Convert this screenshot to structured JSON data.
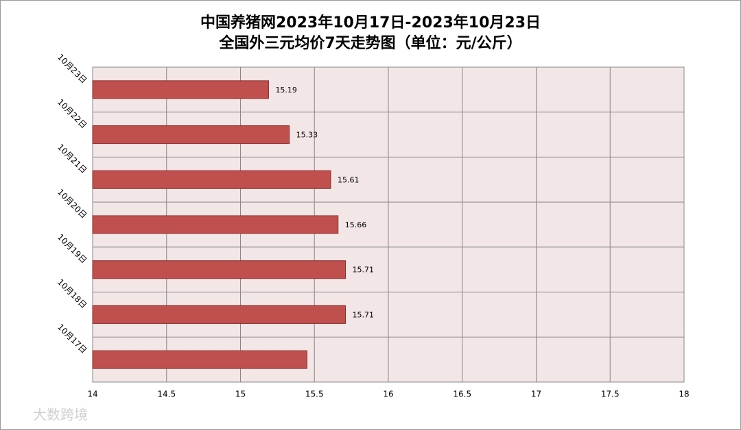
{
  "chart_data": {
    "type": "barh",
    "title": "中国养猪网2023年10月17日-2023年10月23日",
    "subtitle": "全国外三元均价7天走势图（单位：元/公斤）",
    "categories": [
      "10月23日",
      "10月22日",
      "10月21日",
      "10月20日",
      "10月19日",
      "10月18日",
      "10月17日"
    ],
    "values": [
      15.19,
      15.33,
      15.61,
      15.66,
      15.71,
      15.71,
      15.45
    ],
    "value_labels": [
      "15.19",
      "15.33",
      "15.61",
      "15.66",
      "15.71",
      "15.71",
      null
    ],
    "color": "#c0504d",
    "xlim": [
      14,
      18
    ],
    "xticks": [
      14,
      14.5,
      15,
      15.5,
      16,
      16.5,
      17,
      17.5,
      18
    ],
    "grid": true
  },
  "watermark": "大数跨境"
}
